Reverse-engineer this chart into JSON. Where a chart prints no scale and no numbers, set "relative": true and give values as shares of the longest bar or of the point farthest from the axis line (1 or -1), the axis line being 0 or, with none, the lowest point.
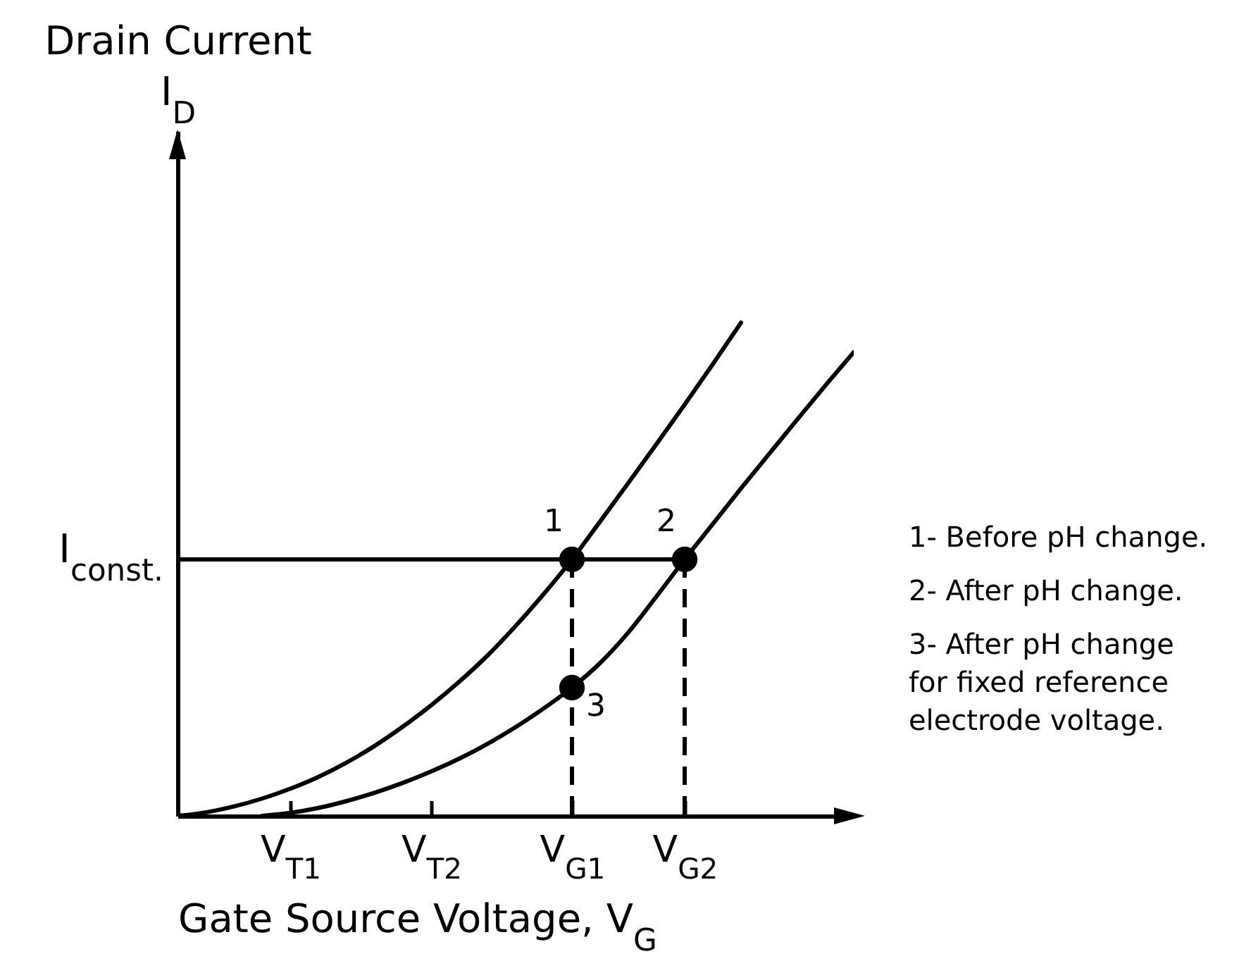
{
  "chart_data": {
    "type": "line",
    "relative": true,
    "xlabel": "Gate Source Voltage, V$_{G}$",
    "ylabel": "Drain Current I$_{D}$",
    "categories": [
      null,
      null,
      null,
      null,
      "V$_{T1}$",
      null,
      null,
      null,
      null,
      "V$_{T2}$",
      null,
      null,
      null,
      null,
      "V$_{G1}$",
      null,
      null,
      null,
      "V$_{G2}$",
      null,
      null,
      null,
      null,
      null,
      null
    ],
    "series": [
      {
        "color": "#000000",
        "values": [
          0,
          0.007,
          0.019,
          0.035,
          0.055,
          0.079,
          0.108,
          0.142,
          0.181,
          0.224,
          0.272,
          0.325,
          0.385,
          0.45,
          0.52,
          0.597,
          0.675,
          0.754,
          0.834,
          0.916,
          1,
          null,
          null,
          null,
          null
        ]
      },
      {
        "color": "#000000",
        "values": [
          null,
          null,
          null,
          0,
          0.006,
          0.016,
          0.03,
          0.047,
          0.067,
          0.09,
          0.116,
          0.146,
          0.18,
          0.218,
          0.26,
          0.31,
          0.372,
          0.445,
          0.52,
          0.592,
          0.664,
          0.734,
          0.804,
          0.873,
          0.94
        ]
      },
      {
        "name": "I$_{const.}$",
        "color": "#000000",
        "values": [
          0.52,
          0.52,
          0.52,
          0.52,
          0.52,
          0.52,
          0.52,
          0.52,
          0.52,
          0.52,
          0.52,
          0.52,
          0.52,
          0.52,
          0.52,
          0.52,
          0.52,
          0.52,
          0.52,
          null,
          null,
          null,
          null,
          null,
          null
        ]
      },
      {
        "type": "lollipop",
        "color": "#000000",
        "line_style": "dashed",
        "marker": "circle",
        "values": [
          null,
          null,
          null,
          null,
          null,
          null,
          null,
          null,
          null,
          null,
          null,
          null,
          null,
          null,
          0.52,
          null,
          null,
          null,
          0.52,
          null,
          null,
          null,
          null,
          null,
          null
        ]
      },
      {
        "type": "scatter",
        "color": "#000000",
        "marker": "circle",
        "values": [
          null,
          null,
          null,
          null,
          null,
          null,
          null,
          null,
          null,
          null,
          null,
          null,
          null,
          null,
          0.26,
          null,
          null,
          null,
          null,
          null,
          null,
          null,
          null,
          null,
          null
        ]
      }
    ],
    "annotations": [
      {
        "text": "1",
        "x": "V$_{G1}$",
        "y": 0.52
      },
      {
        "text": "2",
        "x": "V$_{G2}$",
        "y": 0.52
      },
      {
        "text": "3",
        "x": "V$_{G1}$",
        "y": 0.26
      },
      "1- Before pH change.",
      "2- After pH change.",
      "3- After pH change for fixed reference electrode voltage."
    ]
  }
}
